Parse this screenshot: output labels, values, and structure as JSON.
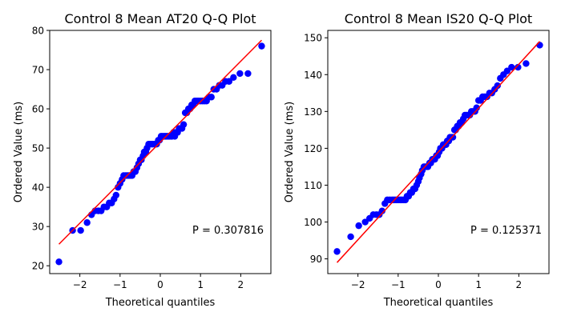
{
  "chart_data": [
    {
      "type": "scatter",
      "title": "Control 8 Mean AT20 Q-Q Plot",
      "xlabel": "Theoretical quantiles",
      "ylabel": "Ordered Value (ms)",
      "xlim": [
        -2.75,
        2.75
      ],
      "ylim": [
        18,
        80
      ],
      "xticks": [
        -2,
        -1,
        0,
        1,
        2
      ],
      "xtick_labels": [
        "−2",
        "−1",
        "0",
        "1",
        "2"
      ],
      "yticks": [
        20,
        30,
        40,
        50,
        60,
        70,
        80
      ],
      "ytick_labels": [
        "20",
        "30",
        "40",
        "50",
        "60",
        "70",
        "80"
      ],
      "annotation": "P = 0.307816",
      "grid": false,
      "marker_color": "#0000ff",
      "line_color": "#ff0000",
      "fit_line": {
        "x": [
          -2.52,
          2.52
        ],
        "y": [
          25.5,
          77.5
        ]
      },
      "points": [
        [
          -2.52,
          21
        ],
        [
          -2.18,
          29
        ],
        [
          -1.98,
          29
        ],
        [
          -1.82,
          31
        ],
        [
          -1.71,
          33
        ],
        [
          -1.62,
          34
        ],
        [
          -1.54,
          34
        ],
        [
          -1.47,
          34
        ],
        [
          -1.4,
          35
        ],
        [
          -1.33,
          35
        ],
        [
          -1.27,
          36
        ],
        [
          -1.21,
          36
        ],
        [
          -1.15,
          37
        ],
        [
          -1.1,
          38
        ],
        [
          -1.05,
          40
        ],
        [
          -1.0,
          41
        ],
        [
          -0.95,
          42
        ],
        [
          -0.91,
          43
        ],
        [
          -0.86,
          43
        ],
        [
          -0.82,
          43
        ],
        [
          -0.78,
          43
        ],
        [
          -0.74,
          43
        ],
        [
          -0.7,
          43
        ],
        [
          -0.66,
          44
        ],
        [
          -0.62,
          44
        ],
        [
          -0.58,
          45
        ],
        [
          -0.54,
          46
        ],
        [
          -0.5,
          47
        ],
        [
          -0.47,
          47
        ],
        [
          -0.43,
          48
        ],
        [
          -0.4,
          49
        ],
        [
          -0.36,
          49
        ],
        [
          -0.33,
          50
        ],
        [
          -0.29,
          51
        ],
        [
          -0.26,
          51
        ],
        [
          -0.22,
          51
        ],
        [
          -0.19,
          51
        ],
        [
          -0.15,
          51
        ],
        [
          -0.12,
          51
        ],
        [
          -0.09,
          51
        ],
        [
          -0.05,
          52
        ],
        [
          -0.02,
          52
        ],
        [
          0.02,
          53
        ],
        [
          0.05,
          53
        ],
        [
          0.09,
          53
        ],
        [
          0.12,
          53
        ],
        [
          0.15,
          53
        ],
        [
          0.19,
          53
        ],
        [
          0.22,
          53
        ],
        [
          0.26,
          53
        ],
        [
          0.29,
          53
        ],
        [
          0.33,
          54
        ],
        [
          0.36,
          53
        ],
        [
          0.4,
          54
        ],
        [
          0.43,
          54
        ],
        [
          0.47,
          55
        ],
        [
          0.5,
          55
        ],
        [
          0.54,
          55
        ],
        [
          0.58,
          56
        ],
        [
          0.62,
          59
        ],
        [
          0.66,
          59
        ],
        [
          0.7,
          60
        ],
        [
          0.74,
          60
        ],
        [
          0.78,
          61
        ],
        [
          0.82,
          61
        ],
        [
          0.86,
          62
        ],
        [
          0.91,
          62
        ],
        [
          0.95,
          62
        ],
        [
          1.0,
          62
        ],
        [
          1.05,
          62
        ],
        [
          1.1,
          62
        ],
        [
          1.15,
          62
        ],
        [
          1.21,
          63
        ],
        [
          1.27,
          63
        ],
        [
          1.33,
          65
        ],
        [
          1.4,
          65
        ],
        [
          1.47,
          66
        ],
        [
          1.54,
          66
        ],
        [
          1.62,
          67
        ],
        [
          1.71,
          67
        ],
        [
          1.82,
          68
        ],
        [
          1.98,
          69
        ],
        [
          2.18,
          69
        ],
        [
          2.52,
          76
        ]
      ]
    },
    {
      "type": "scatter",
      "title": "Control 8 Mean IS20 Q-Q Plot",
      "xlabel": "Theoretical quantiles",
      "ylabel": "Ordered Value (ms)",
      "xlim": [
        -2.75,
        2.75
      ],
      "ylim": [
        86,
        152
      ],
      "xticks": [
        -2,
        -1,
        0,
        1,
        2
      ],
      "xtick_labels": [
        "−2",
        "−1",
        "0",
        "1",
        "2"
      ],
      "yticks": [
        90,
        100,
        110,
        120,
        130,
        140,
        150
      ],
      "ytick_labels": [
        "90",
        "100",
        "110",
        "120",
        "130",
        "140",
        "150"
      ],
      "annotation": "P = 0.125371",
      "grid": false,
      "marker_color": "#0000ff",
      "line_color": "#ff0000",
      "fit_line": {
        "x": [
          -2.52,
          2.52
        ],
        "y": [
          89,
          149
        ]
      },
      "points": [
        [
          -2.52,
          92
        ],
        [
          -2.18,
          96
        ],
        [
          -1.98,
          99
        ],
        [
          -1.82,
          100
        ],
        [
          -1.71,
          101
        ],
        [
          -1.62,
          102
        ],
        [
          -1.54,
          102
        ],
        [
          -1.47,
          102
        ],
        [
          -1.4,
          103
        ],
        [
          -1.33,
          105
        ],
        [
          -1.27,
          106
        ],
        [
          -1.21,
          106
        ],
        [
          -1.15,
          106
        ],
        [
          -1.1,
          106
        ],
        [
          -1.05,
          106
        ],
        [
          -1.0,
          106
        ],
        [
          -0.95,
          106
        ],
        [
          -0.91,
          106
        ],
        [
          -0.86,
          106
        ],
        [
          -0.82,
          106
        ],
        [
          -0.78,
          107
        ],
        [
          -0.74,
          107
        ],
        [
          -0.7,
          108
        ],
        [
          -0.66,
          108
        ],
        [
          -0.62,
          109
        ],
        [
          -0.58,
          109
        ],
        [
          -0.54,
          110
        ],
        [
          -0.5,
          111
        ],
        [
          -0.47,
          112
        ],
        [
          -0.43,
          113
        ],
        [
          -0.4,
          114
        ],
        [
          -0.36,
          115
        ],
        [
          -0.33,
          115
        ],
        [
          -0.29,
          115
        ],
        [
          -0.26,
          115
        ],
        [
          -0.22,
          116
        ],
        [
          -0.19,
          116
        ],
        [
          -0.15,
          117
        ],
        [
          -0.12,
          117
        ],
        [
          -0.09,
          117
        ],
        [
          -0.05,
          118
        ],
        [
          -0.02,
          118
        ],
        [
          0.02,
          119
        ],
        [
          0.05,
          120
        ],
        [
          0.09,
          120
        ],
        [
          0.12,
          121
        ],
        [
          0.15,
          121
        ],
        [
          0.19,
          121
        ],
        [
          0.22,
          122
        ],
        [
          0.26,
          122
        ],
        [
          0.29,
          123
        ],
        [
          0.33,
          123
        ],
        [
          0.36,
          123
        ],
        [
          0.4,
          125
        ],
        [
          0.43,
          125
        ],
        [
          0.47,
          126
        ],
        [
          0.5,
          126
        ],
        [
          0.54,
          127
        ],
        [
          0.58,
          127
        ],
        [
          0.62,
          128
        ],
        [
          0.66,
          129
        ],
        [
          0.7,
          129
        ],
        [
          0.74,
          129
        ],
        [
          0.78,
          129
        ],
        [
          0.82,
          130
        ],
        [
          0.86,
          130
        ],
        [
          0.91,
          130
        ],
        [
          0.95,
          131
        ],
        [
          1.0,
          133
        ],
        [
          1.05,
          133
        ],
        [
          1.1,
          134
        ],
        [
          1.15,
          134
        ],
        [
          1.21,
          134
        ],
        [
          1.27,
          135
        ],
        [
          1.33,
          135
        ],
        [
          1.4,
          136
        ],
        [
          1.47,
          137
        ],
        [
          1.54,
          139
        ],
        [
          1.62,
          140
        ],
        [
          1.71,
          141
        ],
        [
          1.82,
          142
        ],
        [
          1.98,
          142
        ],
        [
          2.18,
          143
        ],
        [
          2.52,
          148
        ]
      ]
    }
  ]
}
